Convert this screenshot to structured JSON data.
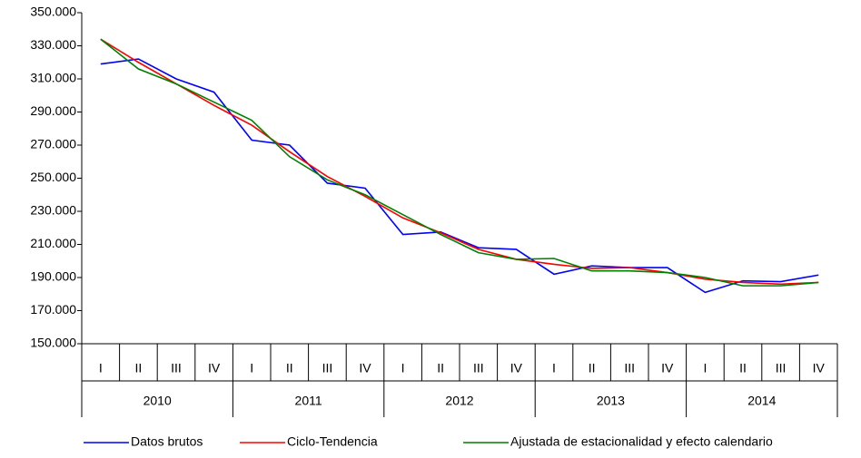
{
  "chart_data": {
    "type": "line",
    "categories": [
      "I",
      "II",
      "III",
      "IV",
      "I",
      "II",
      "III",
      "IV",
      "I",
      "II",
      "III",
      "IV",
      "I",
      "II",
      "III",
      "IV",
      "I",
      "II",
      "III",
      "IV"
    ],
    "years": [
      "2010",
      "2011",
      "2012",
      "2013",
      "2014"
    ],
    "series": [
      {
        "name": "Datos brutos",
        "color": "#0000ff",
        "values": [
          319000,
          322000,
          310000,
          302000,
          273000,
          270000,
          247000,
          244000,
          216000,
          217500,
          208000,
          207000,
          192000,
          197000,
          196000,
          196000,
          181000,
          188000,
          187500,
          191500
        ]
      },
      {
        "name": "Ciclo-Tendencia",
        "color": "#ff0000",
        "values": [
          334000,
          320000,
          307000,
          294000,
          282000,
          266000,
          251000,
          239000,
          226000,
          217000,
          207000,
          201000,
          198000,
          195500,
          196000,
          193000,
          189000,
          187000,
          186000,
          187000
        ]
      },
      {
        "name": "Ajustada de estacionalidad y efecto calendario",
        "color": "#008000",
        "values": [
          334000,
          316000,
          307000,
          296000,
          285000,
          263000,
          249000,
          240000,
          228000,
          216000,
          205000,
          201000,
          201500,
          194000,
          194000,
          193000,
          190000,
          185000,
          185000,
          187000
        ]
      }
    ],
    "ylim": [
      150000,
      350000
    ],
    "yticks": [
      {
        "value": 150000,
        "label": "150.000"
      },
      {
        "value": 170000,
        "label": "170.000"
      },
      {
        "value": 190000,
        "label": "190.000"
      },
      {
        "value": 210000,
        "label": "210.000"
      },
      {
        "value": 230000,
        "label": "230.000"
      },
      {
        "value": 250000,
        "label": "250.000"
      },
      {
        "value": 270000,
        "label": "270.000"
      },
      {
        "value": 290000,
        "label": "290.000"
      },
      {
        "value": 310000,
        "label": "310.000"
      },
      {
        "value": 330000,
        "label": "330.000"
      },
      {
        "value": 350000,
        "label": "350.000"
      }
    ],
    "legend": "bottom"
  }
}
